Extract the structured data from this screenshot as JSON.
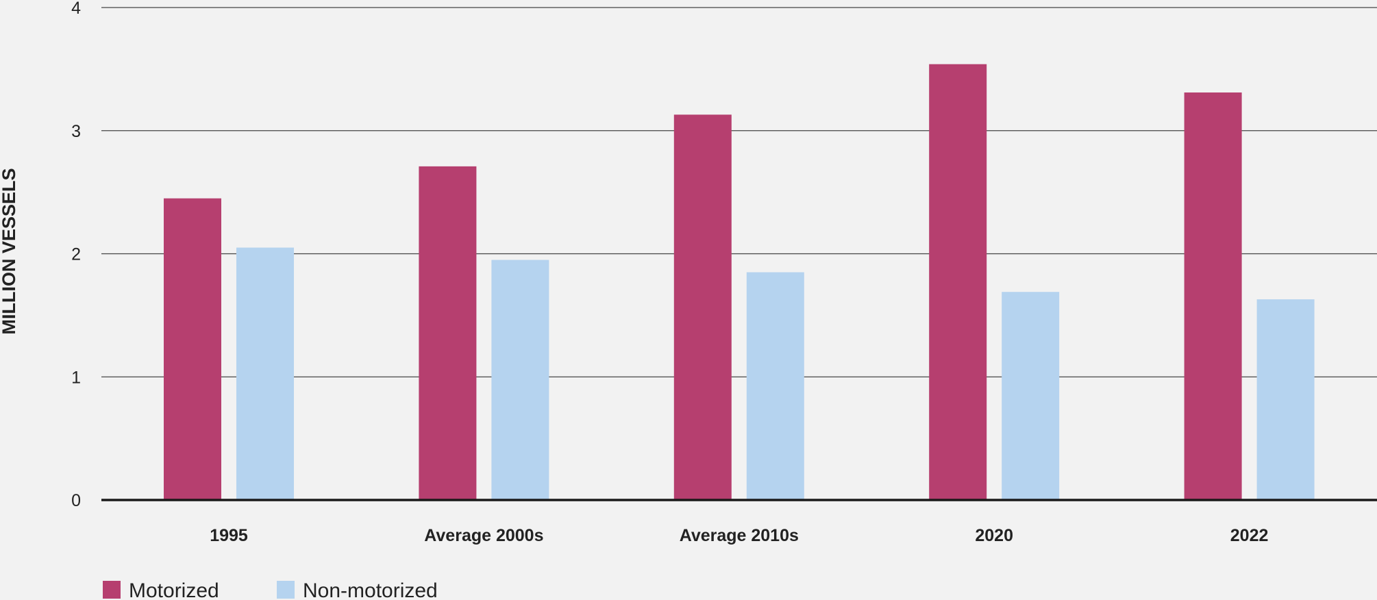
{
  "chart_data": {
    "type": "bar",
    "title": "",
    "xlabel": "",
    "ylabel": "MILLION VESSELS",
    "ylim": [
      0,
      4
    ],
    "yticks": [
      0,
      1,
      2,
      3,
      4
    ],
    "grid": true,
    "legend_position": "bottom-left",
    "categories": [
      "1995",
      "Average 2000s",
      "Average 2010s",
      "2020",
      "2022"
    ],
    "series": [
      {
        "name": "Motorized",
        "color": "#b63f6f",
        "values": [
          2.45,
          2.71,
          3.13,
          3.54,
          3.31
        ]
      },
      {
        "name": "Non-motorized",
        "color": "#b5d3ef",
        "values": [
          2.05,
          1.95,
          1.85,
          1.69,
          1.63
        ]
      }
    ]
  }
}
